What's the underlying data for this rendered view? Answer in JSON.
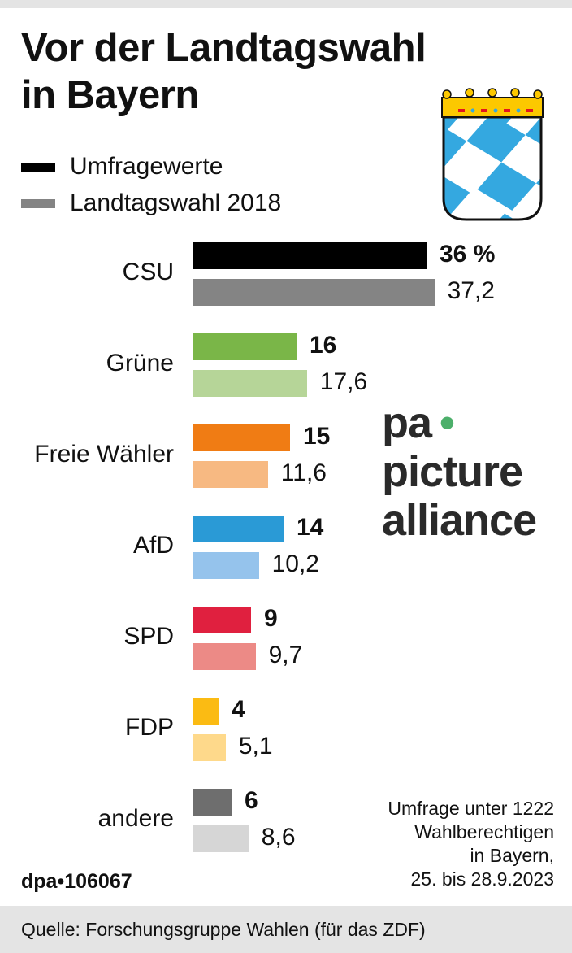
{
  "title_line1": "Vor der Landtagswahl",
  "title_line2": "in Bayern",
  "legend": [
    {
      "label": "Umfragewerte",
      "color": "#000000"
    },
    {
      "label": "Landtagswahl 2018",
      "color": "#848484"
    }
  ],
  "crest_icon": "bavaria-coat-of-arms-icon",
  "chart_data": {
    "type": "bar",
    "orientation": "horizontal",
    "unit": "%",
    "categories": [
      "CSU",
      "Grüne",
      "Freie Wähler",
      "AfD",
      "SPD",
      "FDP",
      "andere"
    ],
    "series": [
      {
        "name": "Umfragewerte",
        "values": [
          36,
          16,
          15,
          14,
          9,
          4,
          6
        ],
        "labels": [
          "36 %",
          "16",
          "15",
          "14",
          "9",
          "4",
          "6"
        ],
        "colors": [
          "#000000",
          "#7ab648",
          "#f07c14",
          "#2a9ad6",
          "#e0203f",
          "#fbbb13",
          "#6e6e6e"
        ]
      },
      {
        "name": "Landtagswahl 2018",
        "values": [
          37.2,
          17.6,
          11.6,
          10.2,
          9.7,
          5.1,
          8.6
        ],
        "labels": [
          "37,2",
          "17,6",
          "11,6",
          "10,2",
          "9,7",
          "5,1",
          "8,6"
        ],
        "colors": [
          "#848484",
          "#b6d598",
          "#f7b982",
          "#95c3ec",
          "#ec8a86",
          "#fed98b",
          "#d6d6d6"
        ]
      }
    ]
  },
  "note": [
    "Umfrage unter 1222",
    "Wahlberechtigen",
    "in Bayern,",
    "25. bis 28.9.2023"
  ],
  "dpa_id": "dpa•106067",
  "source": "Quelle: Forschungsgruppe Wahlen (für das ZDF)",
  "watermark": {
    "left": "pa",
    "dot": "•",
    "right": "picture alliance"
  }
}
